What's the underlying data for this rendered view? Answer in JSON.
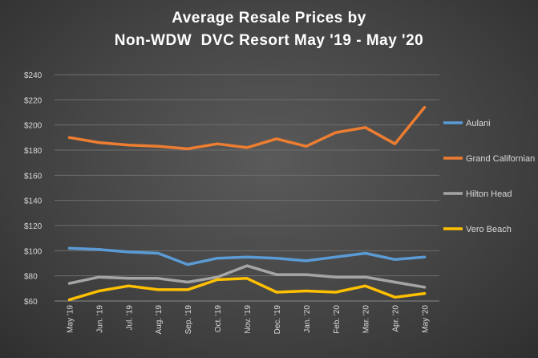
{
  "chart_data": {
    "type": "line",
    "title_lines": [
      "Average Resale Prices by",
      "Non-WDW  DVC Resort May '19 - May '20"
    ],
    "xlabel": "",
    "ylabel": "",
    "categories": [
      "May '19",
      "Jun. '19",
      "Jul. '19",
      "Aug. '19",
      "Sep. '19",
      "Oct. '19",
      "Nov. '19",
      "Dec. '19",
      "Jan. '20",
      "Feb. '20",
      "Mar. '20",
      "Apr. '20",
      "May '20"
    ],
    "y_ticks": [
      "$60",
      "$80",
      "$100",
      "$120",
      "$140",
      "$160",
      "$180",
      "$200",
      "$220",
      "$240"
    ],
    "ylim": [
      60,
      240
    ],
    "grid": true,
    "legend_position": "right",
    "series": [
      {
        "name": "Aulani",
        "color": "#5b9bd5",
        "values": [
          102,
          101,
          99,
          98,
          89,
          94,
          95,
          94,
          92,
          95,
          98,
          93,
          95
        ]
      },
      {
        "name": "Grand Californian",
        "color": "#ed7d31",
        "values": [
          190,
          186,
          184,
          183,
          181,
          185,
          182,
          189,
          183,
          194,
          198,
          185,
          214
        ]
      },
      {
        "name": "Hilton Head",
        "color": "#a5a5a5",
        "values": [
          74,
          79,
          78,
          78,
          75,
          79,
          88,
          81,
          81,
          79,
          79,
          75,
          71
        ]
      },
      {
        "name": "Vero Beach",
        "color": "#ffc000",
        "values": [
          61,
          68,
          72,
          69,
          69,
          77,
          78,
          67,
          68,
          67,
          72,
          63,
          66
        ]
      }
    ]
  }
}
